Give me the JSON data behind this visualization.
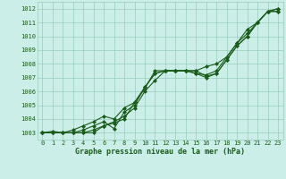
{
  "xlabel": "Graphe pression niveau de la mer (hPa)",
  "xlim": [
    -0.5,
    23.5
  ],
  "ylim": [
    1002.5,
    1012.5
  ],
  "yticks": [
    1003,
    1004,
    1005,
    1006,
    1007,
    1008,
    1009,
    1010,
    1011,
    1012
  ],
  "xticks": [
    0,
    1,
    2,
    3,
    4,
    5,
    6,
    7,
    8,
    9,
    10,
    11,
    12,
    13,
    14,
    15,
    16,
    17,
    18,
    19,
    20,
    21,
    22,
    23
  ],
  "background_color": "#cceee8",
  "grid_color": "#99ccbb",
  "line_color": "#1a5c1a",
  "lines": [
    [
      1003.0,
      1003.1,
      1003.0,
      1003.0,
      1003.2,
      1003.5,
      1003.8,
      1003.3,
      1004.5,
      1005.0,
      1006.3,
      1007.3,
      1007.5,
      1007.5,
      1007.5,
      1007.3,
      1007.0,
      1007.3,
      1008.3,
      1009.3,
      1010.0,
      1011.0,
      1011.8,
      1011.8
    ],
    [
      1003.0,
      1003.0,
      1003.0,
      1003.0,
      1003.0,
      1003.2,
      1003.5,
      1003.8,
      1004.2,
      1004.8,
      1006.0,
      1006.8,
      1007.5,
      1007.5,
      1007.5,
      1007.5,
      1007.1,
      1007.3,
      1008.3,
      1009.3,
      1010.0,
      1011.0,
      1011.8,
      1011.8
    ],
    [
      1003.0,
      1003.0,
      1003.0,
      1003.2,
      1003.5,
      1003.8,
      1004.2,
      1004.0,
      1004.8,
      1005.2,
      1006.3,
      1007.3,
      1007.5,
      1007.5,
      1007.5,
      1007.3,
      1007.2,
      1007.5,
      1008.5,
      1009.5,
      1010.2,
      1011.0,
      1011.8,
      1012.0
    ],
    [
      1003.0,
      1003.0,
      1003.0,
      1003.0,
      1003.0,
      1003.0,
      1003.5,
      1003.7,
      1004.0,
      1005.2,
      1006.2,
      1007.5,
      1007.5,
      1007.5,
      1007.5,
      1007.5,
      1007.8,
      1008.0,
      1008.5,
      1009.5,
      1010.5,
      1011.0,
      1011.8,
      1012.0
    ]
  ],
  "tick_fontsize": 5.0,
  "xlabel_fontsize": 6.0
}
